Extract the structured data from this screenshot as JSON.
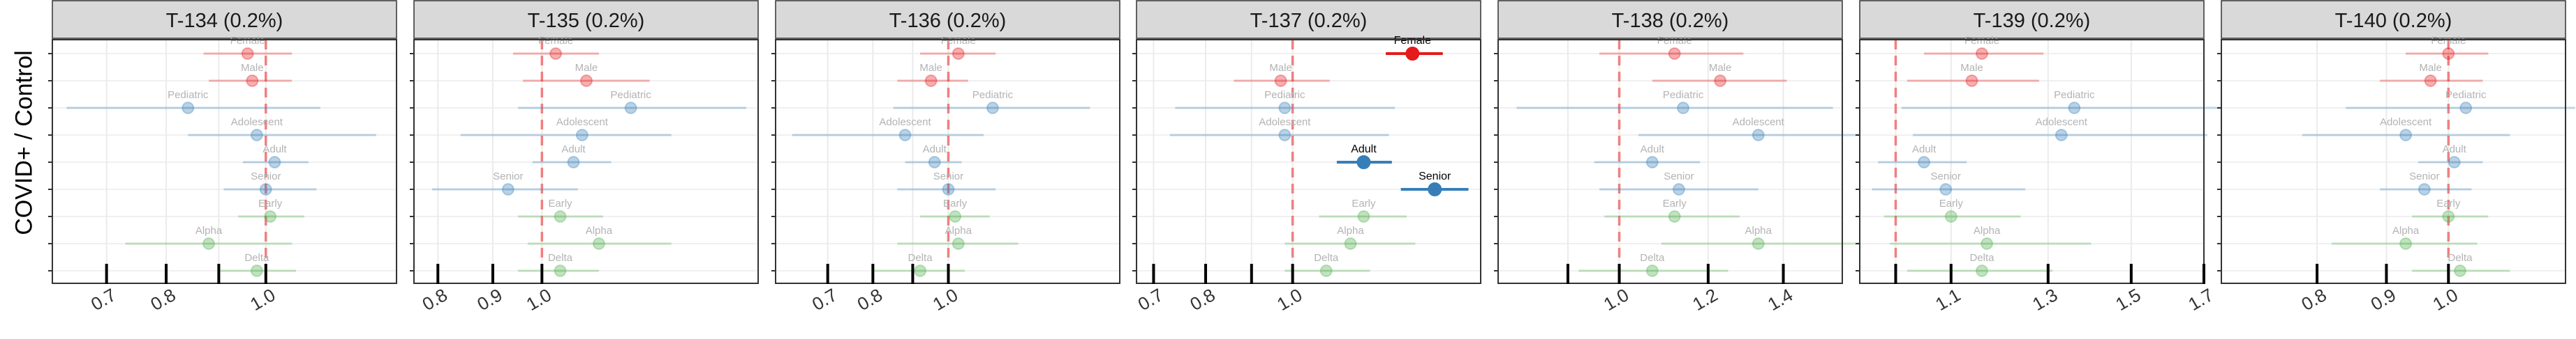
{
  "figure": {
    "ylabel": "COVID+ / Control",
    "colors": {
      "sex": "#e41a1c",
      "age": "#377eb8",
      "variant": "#4daf4a",
      "ref_line": "#f08080",
      "strip": "#d9d9d9",
      "grid": "#ebebeb",
      "panel_border": "#333333"
    }
  },
  "chart_data": [
    {
      "type": "forest",
      "title": "T-134 (0.2%)",
      "xlim": [
        0.62,
        1.34
      ],
      "ticks": [
        {
          "value": 0.7,
          "label": "0.7"
        },
        {
          "value": 0.8,
          "label": "0.8"
        },
        {
          "value": 0.9,
          "label": ""
        },
        {
          "value": 1.0,
          "label": "1.0"
        }
      ],
      "points": [
        {
          "label": "Female",
          "group": "sex",
          "est": 0.96,
          "lo": 0.87,
          "hi": 1.06,
          "highlight": false
        },
        {
          "label": "Male",
          "group": "sex",
          "est": 0.97,
          "lo": 0.88,
          "hi": 1.06,
          "highlight": false
        },
        {
          "label": "Pediatric",
          "group": "age",
          "est": 0.84,
          "lo": 0.64,
          "hi": 1.13,
          "highlight": false
        },
        {
          "label": "Adolescent",
          "group": "age",
          "est": 0.98,
          "lo": 0.84,
          "hi": 1.28,
          "highlight": false
        },
        {
          "label": "Adult",
          "group": "age",
          "est": 1.02,
          "lo": 0.95,
          "hi": 1.1,
          "highlight": false
        },
        {
          "label": "Senior",
          "group": "age",
          "est": 1.0,
          "lo": 0.91,
          "hi": 1.12,
          "highlight": false
        },
        {
          "label": "Early",
          "group": "variant",
          "est": 1.01,
          "lo": 0.94,
          "hi": 1.09,
          "highlight": false
        },
        {
          "label": "Alpha",
          "group": "variant",
          "est": 0.88,
          "lo": 0.73,
          "hi": 1.06,
          "highlight": false
        },
        {
          "label": "Delta",
          "group": "variant",
          "est": 0.98,
          "lo": 0.9,
          "hi": 1.07,
          "highlight": false
        }
      ]
    },
    {
      "type": "forest",
      "title": "T-135 (0.2%)",
      "xlim": [
        0.76,
        1.59
      ],
      "ticks": [
        {
          "value": 0.8,
          "label": "0.8"
        },
        {
          "value": 0.9,
          "label": "0.9"
        },
        {
          "value": 1.0,
          "label": "1.0"
        }
      ],
      "points": [
        {
          "label": "Female",
          "group": "sex",
          "est": 1.03,
          "lo": 0.94,
          "hi": 1.13,
          "highlight": false
        },
        {
          "label": "Male",
          "group": "sex",
          "est": 1.1,
          "lo": 0.96,
          "hi": 1.26,
          "highlight": false
        },
        {
          "label": "Pediatric",
          "group": "age",
          "est": 1.21,
          "lo": 0.95,
          "hi": 1.55,
          "highlight": false
        },
        {
          "label": "Adolescent",
          "group": "age",
          "est": 1.09,
          "lo": 0.84,
          "hi": 1.32,
          "highlight": false
        },
        {
          "label": "Adult",
          "group": "age",
          "est": 1.07,
          "lo": 0.98,
          "hi": 1.16,
          "highlight": false
        },
        {
          "label": "Senior",
          "group": "age",
          "est": 0.93,
          "lo": 0.79,
          "hi": 1.08,
          "highlight": false
        },
        {
          "label": "Early",
          "group": "variant",
          "est": 1.04,
          "lo": 0.95,
          "hi": 1.14,
          "highlight": false
        },
        {
          "label": "Alpha",
          "group": "variant",
          "est": 1.13,
          "lo": 0.97,
          "hi": 1.32,
          "highlight": false
        },
        {
          "label": "Delta",
          "group": "variant",
          "est": 1.04,
          "lo": 0.95,
          "hi": 1.13,
          "highlight": false
        }
      ]
    },
    {
      "type": "forest",
      "title": "T-136 (0.2%)",
      "xlim": [
        0.6,
        1.66
      ],
      "ticks": [
        {
          "value": 0.7,
          "label": "0.7"
        },
        {
          "value": 0.8,
          "label": "0.8"
        },
        {
          "value": 0.9,
          "label": ""
        },
        {
          "value": 1.0,
          "label": "1.0"
        }
      ],
      "points": [
        {
          "label": "Female",
          "group": "sex",
          "est": 1.03,
          "lo": 0.92,
          "hi": 1.15,
          "highlight": false
        },
        {
          "label": "Male",
          "group": "sex",
          "est": 0.95,
          "lo": 0.86,
          "hi": 1.06,
          "highlight": false
        },
        {
          "label": "Pediatric",
          "group": "age",
          "est": 1.14,
          "lo": 0.85,
          "hi": 1.52,
          "highlight": false
        },
        {
          "label": "Adolescent",
          "group": "age",
          "est": 0.88,
          "lo": 0.63,
          "hi": 1.11,
          "highlight": false
        },
        {
          "label": "Adult",
          "group": "age",
          "est": 0.96,
          "lo": 0.88,
          "hi": 1.04,
          "highlight": false
        },
        {
          "label": "Senior",
          "group": "age",
          "est": 1.0,
          "lo": 0.86,
          "hi": 1.15,
          "highlight": false
        },
        {
          "label": "Early",
          "group": "variant",
          "est": 1.02,
          "lo": 0.92,
          "hi": 1.13,
          "highlight": false
        },
        {
          "label": "Alpha",
          "group": "variant",
          "est": 1.03,
          "lo": 0.86,
          "hi": 1.23,
          "highlight": false
        },
        {
          "label": "Delta",
          "group": "variant",
          "est": 0.92,
          "lo": 0.8,
          "hi": 1.05,
          "highlight": false
        }
      ]
    },
    {
      "type": "forest",
      "title": "T-137 (0.2%)",
      "xlim": [
        0.67,
        1.62
      ],
      "ticks": [
        {
          "value": 0.7,
          "label": "0.7"
        },
        {
          "value": 0.8,
          "label": "0.8"
        },
        {
          "value": 0.9,
          "label": ""
        },
        {
          "value": 1.0,
          "label": "1.0"
        }
      ],
      "points": [
        {
          "label": "Female",
          "group": "sex",
          "est": 1.36,
          "lo": 1.27,
          "hi": 1.47,
          "highlight": true
        },
        {
          "label": "Male",
          "group": "sex",
          "est": 0.97,
          "lo": 0.86,
          "hi": 1.1,
          "highlight": false
        },
        {
          "label": "Pediatric",
          "group": "age",
          "est": 0.98,
          "lo": 0.74,
          "hi": 1.3,
          "highlight": false
        },
        {
          "label": "Adolescent",
          "group": "age",
          "est": 0.98,
          "lo": 0.73,
          "hi": 1.28,
          "highlight": false
        },
        {
          "label": "Adult",
          "group": "age",
          "est": 1.2,
          "lo": 1.12,
          "hi": 1.29,
          "highlight": true
        },
        {
          "label": "Senior",
          "group": "age",
          "est": 1.44,
          "lo": 1.32,
          "hi": 1.57,
          "highlight": true
        },
        {
          "label": "Early",
          "group": "variant",
          "est": 1.2,
          "lo": 1.07,
          "hi": 1.34,
          "highlight": false
        },
        {
          "label": "Alpha",
          "group": "variant",
          "est": 1.16,
          "lo": 0.98,
          "hi": 1.37,
          "highlight": false
        },
        {
          "label": "Delta",
          "group": "variant",
          "est": 1.09,
          "lo": 0.98,
          "hi": 1.22,
          "highlight": false
        }
      ]
    },
    {
      "type": "forest",
      "title": "T-138 (0.2%)",
      "xlim": [
        0.78,
        1.58
      ],
      "ticks": [
        {
          "value": 0.9,
          "label": ""
        },
        {
          "value": 1.0,
          "label": "1.0"
        },
        {
          "value": 1.2,
          "label": "1.2"
        },
        {
          "value": 1.4,
          "label": "1.4"
        }
      ],
      "points": [
        {
          "label": "Female",
          "group": "sex",
          "est": 1.12,
          "lo": 0.96,
          "hi": 1.29,
          "highlight": false
        },
        {
          "label": "Male",
          "group": "sex",
          "est": 1.23,
          "lo": 1.07,
          "hi": 1.41,
          "highlight": false
        },
        {
          "label": "Pediatric",
          "group": "age",
          "est": 1.14,
          "lo": 0.81,
          "hi": 1.55,
          "highlight": false
        },
        {
          "label": "Adolescent",
          "group": "age",
          "est": 1.33,
          "lo": 1.04,
          "hi": 1.69,
          "highlight": false
        },
        {
          "label": "Adult",
          "group": "age",
          "est": 1.07,
          "lo": 0.95,
          "hi": 1.18,
          "highlight": false
        },
        {
          "label": "Senior",
          "group": "age",
          "est": 1.13,
          "lo": 0.96,
          "hi": 1.33,
          "highlight": false
        },
        {
          "label": "Early",
          "group": "variant",
          "est": 1.12,
          "lo": 0.97,
          "hi": 1.28,
          "highlight": false
        },
        {
          "label": "Alpha",
          "group": "variant",
          "est": 1.33,
          "lo": 1.09,
          "hi": 1.64,
          "highlight": false
        },
        {
          "label": "Delta",
          "group": "variant",
          "est": 1.07,
          "lo": 0.92,
          "hi": 1.25,
          "highlight": false
        }
      ]
    },
    {
      "type": "forest",
      "title": "T-139 (0.2%)",
      "xlim": [
        0.94,
        1.7
      ],
      "ticks": [
        {
          "value": 1.0,
          "label": ""
        },
        {
          "value": 1.1,
          "label": "1.1"
        },
        {
          "value": 1.3,
          "label": "1.3"
        },
        {
          "value": 1.5,
          "label": "1.5"
        },
        {
          "value": 1.7,
          "label": "1.7"
        }
      ],
      "points": [
        {
          "label": "Female",
          "group": "sex",
          "est": 1.16,
          "lo": 1.05,
          "hi": 1.29,
          "highlight": false
        },
        {
          "label": "Male",
          "group": "sex",
          "est": 1.14,
          "lo": 1.02,
          "hi": 1.28,
          "highlight": false
        },
        {
          "label": "Pediatric",
          "group": "age",
          "est": 1.36,
          "lo": 1.01,
          "hi": 1.83,
          "highlight": false
        },
        {
          "label": "Adolescent",
          "group": "age",
          "est": 1.33,
          "lo": 1.03,
          "hi": 1.71,
          "highlight": false
        },
        {
          "label": "Adult",
          "group": "age",
          "est": 1.05,
          "lo": 0.97,
          "hi": 1.13,
          "highlight": false
        },
        {
          "label": "Senior",
          "group": "age",
          "est": 1.09,
          "lo": 0.96,
          "hi": 1.25,
          "highlight": false
        },
        {
          "label": "Early",
          "group": "variant",
          "est": 1.1,
          "lo": 0.98,
          "hi": 1.24,
          "highlight": false
        },
        {
          "label": "Alpha",
          "group": "variant",
          "est": 1.17,
          "lo": 0.99,
          "hi": 1.4,
          "highlight": false
        },
        {
          "label": "Delta",
          "group": "variant",
          "est": 1.16,
          "lo": 1.02,
          "hi": 1.31,
          "highlight": false
        }
      ]
    },
    {
      "type": "forest",
      "title": "T-140 (0.2%)",
      "xlim": [
        0.68,
        1.22
      ],
      "ticks": [
        {
          "value": 0.8,
          "label": "0.8"
        },
        {
          "value": 0.9,
          "label": "0.9"
        },
        {
          "value": 1.0,
          "label": "1.0"
        }
      ],
      "points": [
        {
          "label": "Female",
          "group": "sex",
          "est": 1.0,
          "lo": 0.93,
          "hi": 1.07,
          "highlight": false
        },
        {
          "label": "Male",
          "group": "sex",
          "est": 0.97,
          "lo": 0.89,
          "hi": 1.06,
          "highlight": false
        },
        {
          "label": "Pediatric",
          "group": "age",
          "est": 1.03,
          "lo": 0.84,
          "hi": 1.24,
          "highlight": false
        },
        {
          "label": "Adolescent",
          "group": "age",
          "est": 0.93,
          "lo": 0.78,
          "hi": 1.11,
          "highlight": false
        },
        {
          "label": "Adult",
          "group": "age",
          "est": 1.01,
          "lo": 0.95,
          "hi": 1.06,
          "highlight": false
        },
        {
          "label": "Senior",
          "group": "age",
          "est": 0.96,
          "lo": 0.89,
          "hi": 1.04,
          "highlight": false
        },
        {
          "label": "Early",
          "group": "variant",
          "est": 1.0,
          "lo": 0.94,
          "hi": 1.07,
          "highlight": false
        },
        {
          "label": "Alpha",
          "group": "variant",
          "est": 0.93,
          "lo": 0.82,
          "hi": 1.05,
          "highlight": false
        },
        {
          "label": "Delta",
          "group": "variant",
          "est": 1.02,
          "lo": 0.94,
          "hi": 1.11,
          "highlight": false
        }
      ]
    }
  ]
}
